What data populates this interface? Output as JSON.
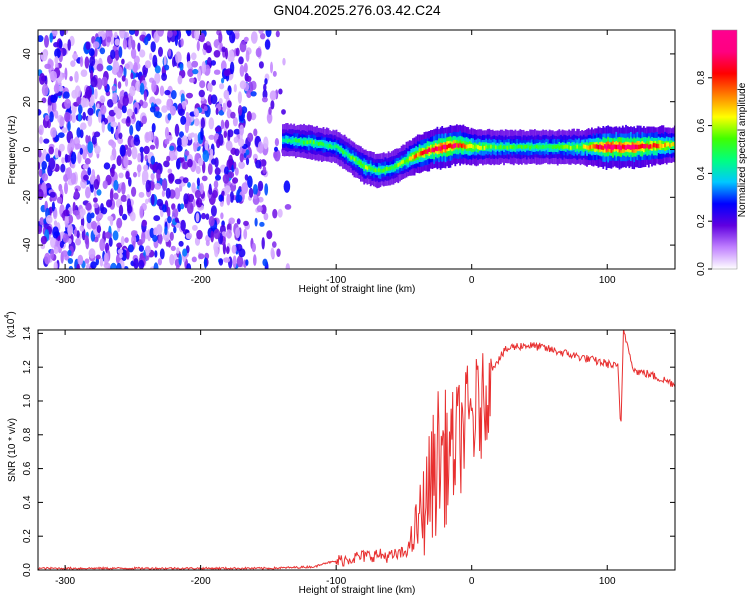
{
  "figure_title": "GN04.2025.276.03.42.C24",
  "chart_data": [
    {
      "type": "heatmap",
      "title": "GN04.2025.276.03.42.C24",
      "xlabel": "Height of straight line (km)",
      "ylabel": "Frequency (Hz)",
      "xlim": [
        -320,
        150
      ],
      "ylim": [
        -50,
        50
      ],
      "x_ticks": [
        -300,
        -200,
        -100,
        0,
        100
      ],
      "x_tick_labels": [
        "-300",
        "-200",
        "-100",
        "0",
        "100"
      ],
      "y_ticks": [
        -40,
        -20,
        0,
        20,
        40
      ],
      "y_tick_labels": [
        "-40",
        "-20",
        "0",
        "20",
        "40"
      ],
      "noise_region": {
        "x_range": [
          -320,
          -135
        ],
        "description_values": "scattered low-amplitude energy across all frequencies"
      },
      "signal_ridge": {
        "x": [
          -140,
          -120,
          -100,
          -90,
          -80,
          -70,
          -60,
          -50,
          -40,
          -30,
          -20,
          -10,
          0,
          20,
          50,
          80,
          100,
          120,
          150
        ],
        "freq": [
          4,
          3,
          1,
          -3,
          -7,
          -9,
          -8,
          -5,
          -2,
          0,
          1,
          2,
          1,
          1,
          1,
          1,
          1,
          1,
          2
        ],
        "amplitude": [
          0.35,
          0.45,
          0.4,
          0.45,
          0.5,
          0.45,
          0.45,
          0.5,
          0.7,
          0.8,
          0.9,
          0.8,
          0.6,
          0.45,
          0.45,
          0.5,
          0.95,
          0.9,
          0.55
        ]
      },
      "colorbar": {
        "label": "Normalized spectral amplitude",
        "range": [
          0,
          1
        ],
        "ticks": [
          0.0,
          0.2,
          0.4,
          0.6,
          0.8
        ],
        "tick_labels": [
          "0.0",
          "0.2",
          "0.4",
          "0.6",
          "0.8"
        ],
        "colors": [
          "#ffffff",
          "#c080ff",
          "#6000e0",
          "#0000ff",
          "#00c8ff",
          "#00ff80",
          "#40ff00",
          "#ffff00",
          "#ff8000",
          "#ff0000",
          "#ff0080",
          "#ff0090"
        ]
      }
    },
    {
      "type": "line",
      "xlabel": "Height of straight line (km)",
      "ylabel": "SNR (10 * v/v)",
      "y_scale_label": "(x10",
      "y_scale_exponent": "4",
      "y_scale_suffix": ")",
      "xlim": [
        -320,
        150
      ],
      "ylim": [
        0,
        1.42
      ],
      "x_ticks": [
        -300,
        -200,
        -100,
        0,
        100
      ],
      "x_tick_labels": [
        "-300",
        "-200",
        "-100",
        "0",
        "100"
      ],
      "y_ticks": [
        0.0,
        0.2,
        0.4,
        0.6,
        0.8,
        1.0,
        1.2,
        1.4
      ],
      "y_tick_labels": [
        "0.0",
        "0.2",
        "0.4",
        "0.6",
        "0.8",
        "1.0",
        "1.2",
        "1.4"
      ],
      "series": [
        {
          "name": "SNR",
          "color": "#e83030",
          "x": [
            -320,
            -250,
            -200,
            -150,
            -130,
            -115,
            -110,
            -100,
            -90,
            -80,
            -70,
            -60,
            -50,
            -45,
            -40,
            -35,
            -30,
            -25,
            -20,
            -15,
            -10,
            -5,
            0,
            5,
            10,
            15,
            20,
            25,
            30,
            40,
            50,
            60,
            70,
            80,
            90,
            100,
            108,
            110,
            112,
            120,
            130,
            140,
            150
          ],
          "y": [
            0.01,
            0.01,
            0.01,
            0.01,
            0.015,
            0.02,
            0.04,
            0.05,
            0.07,
            0.08,
            0.09,
            0.08,
            0.1,
            0.15,
            0.25,
            0.35,
            0.45,
            0.55,
            0.65,
            0.75,
            0.85,
            0.95,
            1.0,
            1.1,
            1.15,
            1.2,
            1.25,
            1.3,
            1.32,
            1.33,
            1.32,
            1.3,
            1.28,
            1.26,
            1.24,
            1.22,
            1.2,
            0.82,
            1.42,
            1.18,
            1.16,
            1.13,
            1.1
          ],
          "envelope": {
            "x": [
              -45,
              -35,
              -25,
              -15,
              -5,
              5,
              15
            ],
            "low": [
              0.05,
              0.08,
              0.2,
              0.3,
              0.5,
              0.55,
              0.9
            ],
            "high": [
              0.25,
              0.65,
              1.1,
              1.05,
              1.2,
              1.28,
              1.3
            ]
          }
        }
      ]
    }
  ]
}
